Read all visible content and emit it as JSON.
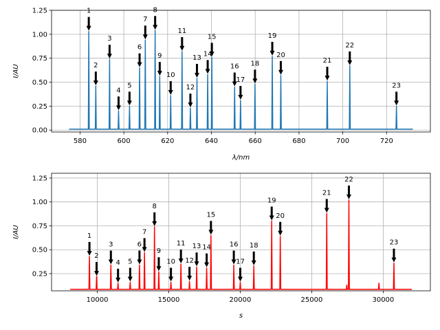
{
  "chart_data": [
    {
      "type": "line",
      "xlabel": "λ/nm",
      "ylabel": "I/AU",
      "xlim": [
        567,
        740
      ],
      "ylim": [
        -0.02,
        1.25
      ],
      "xticks": [
        580,
        600,
        620,
        640,
        660,
        680,
        700,
        720
      ],
      "yticks": [
        0.0,
        0.25,
        0.5,
        0.75,
        1.0,
        1.25
      ],
      "grid": true,
      "baseline": 0.01,
      "x_range": [
        575,
        732
      ],
      "line_color": "#1f77b4",
      "peaks": [
        {
          "label": "1",
          "x": 584.0,
          "y": 1.03
        },
        {
          "label": "2",
          "x": 587.2,
          "y": 0.46
        },
        {
          "label": "3",
          "x": 593.5,
          "y": 0.74
        },
        {
          "label": "4",
          "x": 597.6,
          "y": 0.2
        },
        {
          "label": "5",
          "x": 602.6,
          "y": 0.25
        },
        {
          "label": "6",
          "x": 607.2,
          "y": 0.65
        },
        {
          "label": "7",
          "x": 609.8,
          "y": 0.94
        },
        {
          "label": "8",
          "x": 614.3,
          "y": 1.04
        },
        {
          "label": "9",
          "x": 616.4,
          "y": 0.56
        },
        {
          "label": "10",
          "x": 621.4,
          "y": 0.36
        },
        {
          "label": "11",
          "x": 626.6,
          "y": 0.82
        },
        {
          "label": "12",
          "x": 630.4,
          "y": 0.23
        },
        {
          "label": "13",
          "x": 633.4,
          "y": 0.54
        },
        {
          "label": "14",
          "x": 638.3,
          "y": 0.58
        },
        {
          "label": "15",
          "x": 640.2,
          "y": 0.76
        },
        {
          "label": "16",
          "x": 650.6,
          "y": 0.45
        },
        {
          "label": "17",
          "x": 653.3,
          "y": 0.31
        },
        {
          "label": "18",
          "x": 659.9,
          "y": 0.48
        },
        {
          "label": "19",
          "x": 667.8,
          "y": 0.77
        },
        {
          "label": "20",
          "x": 671.7,
          "y": 0.57
        },
        {
          "label": "21",
          "x": 692.9,
          "y": 0.51
        },
        {
          "label": "22",
          "x": 703.2,
          "y": 0.67
        },
        {
          "label": "23",
          "x": 724.5,
          "y": 0.25
        }
      ]
    },
    {
      "type": "line",
      "xlabel": "s",
      "ylabel": "I/AU",
      "xlim": [
        6800,
        33300
      ],
      "ylim": [
        0.07,
        1.3
      ],
      "xticks": [
        10000,
        15000,
        20000,
        25000,
        30000
      ],
      "yticks": [
        0.25,
        0.5,
        0.75,
        1.0,
        1.25
      ],
      "grid": true,
      "baseline": 0.085,
      "x_range": [
        8100,
        32000
      ],
      "line_color": "#ff0000",
      "extra_spikes": [
        {
          "x": 27450,
          "y": 0.13
        },
        {
          "x": 29700,
          "y": 0.15
        }
      ],
      "peaks": [
        {
          "label": "1",
          "x": 9450,
          "y": 0.43
        },
        {
          "label": "2",
          "x": 9950,
          "y": 0.22
        },
        {
          "label": "3",
          "x": 10950,
          "y": 0.34
        },
        {
          "label": "4",
          "x": 11450,
          "y": 0.15
        },
        {
          "label": "5",
          "x": 12300,
          "y": 0.16
        },
        {
          "label": "6",
          "x": 12950,
          "y": 0.34
        },
        {
          "label": "7",
          "x": 13300,
          "y": 0.47
        },
        {
          "label": "8",
          "x": 14000,
          "y": 0.74
        },
        {
          "label": "9",
          "x": 14300,
          "y": 0.27
        },
        {
          "label": "10",
          "x": 15150,
          "y": 0.16
        },
        {
          "label": "11",
          "x": 15850,
          "y": 0.35
        },
        {
          "label": "12",
          "x": 16450,
          "y": 0.17
        },
        {
          "label": "13",
          "x": 16950,
          "y": 0.32
        },
        {
          "label": "14",
          "x": 17650,
          "y": 0.31
        },
        {
          "label": "15",
          "x": 17950,
          "y": 0.65
        },
        {
          "label": "16",
          "x": 19550,
          "y": 0.34
        },
        {
          "label": "17",
          "x": 20000,
          "y": 0.16
        },
        {
          "label": "18",
          "x": 20950,
          "y": 0.33
        },
        {
          "label": "19",
          "x": 22200,
          "y": 0.8
        },
        {
          "label": "20",
          "x": 22800,
          "y": 0.64
        },
        {
          "label": "21",
          "x": 26050,
          "y": 0.88
        },
        {
          "label": "22",
          "x": 27600,
          "y": 1.02
        },
        {
          "label": "23",
          "x": 30750,
          "y": 0.36
        }
      ]
    }
  ]
}
